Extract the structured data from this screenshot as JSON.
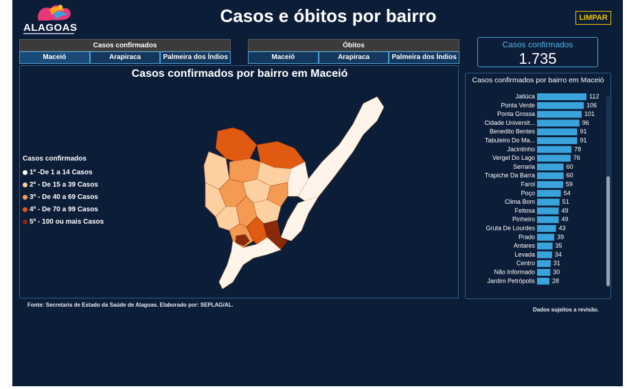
{
  "header": {
    "logo_text": "ALAGOAS",
    "title": "Casos e óbitos por bairro",
    "clear_label": "LIMPAR"
  },
  "tab_groups": [
    {
      "title": "Casos confirmados",
      "tabs": [
        "Maceió",
        "Arapiraca",
        "Palmeira dos Índios"
      ],
      "active": 0
    },
    {
      "title": "Óbitos",
      "tabs": [
        "Maceió",
        "Arapiraca",
        "Palmeira dos Índios"
      ],
      "active": -1
    }
  ],
  "map": {
    "title": "Casos confirmados por bairro em Maceió",
    "legend_title": "Casos confirmados",
    "legend": [
      {
        "label": "1ª -De 1 a 14 Casos",
        "color": "#ffffff"
      },
      {
        "label": "2ª - De 15 a 39 Casos",
        "color": "#fdd0a2"
      },
      {
        "label": "3ª - De 40 a 69 Casos",
        "color": "#f59a52"
      },
      {
        "label": "4ª - De 70 a 99 Casos",
        "color": "#e05a12"
      },
      {
        "label": "5ª - 100 ou mais Casos",
        "color": "#8a2a0a"
      }
    ]
  },
  "kpi": {
    "label": "Casos confirmados",
    "value": "1.735"
  },
  "chart_data": {
    "type": "bar",
    "title": "Casos confirmados por bairro em Maceió",
    "orientation": "horizontal",
    "categories": [
      "Jatiúca",
      "Ponta Verde",
      "Ponta Grossa",
      "Cidade Universit...",
      "Benedito Bentes",
      "Tabuleiro Do Ma...",
      "Jacintinho",
      "Vergel Do Lago",
      "Serraria",
      "Trapiche Da Barra",
      "Farol",
      "Poço",
      "Clima Bom",
      "Feitosa",
      "Pinheiro",
      "Gruta De Lourdes",
      "Prado",
      "Antares",
      "Levada",
      "Centro",
      "Não Informado",
      "Jardim Petrópolis"
    ],
    "values": [
      112,
      106,
      101,
      96,
      91,
      91,
      78,
      76,
      60,
      60,
      59,
      54,
      51,
      49,
      49,
      43,
      39,
      35,
      34,
      31,
      30,
      28
    ],
    "bar_color": "#3aa3dc"
  },
  "footer": {
    "source": "Fonte: Secretaria de Estado da Saúde de Alagoas. Elaborado por: SEPLAG/AL.",
    "disclaimer": "Dados sujeitos a revisão."
  }
}
